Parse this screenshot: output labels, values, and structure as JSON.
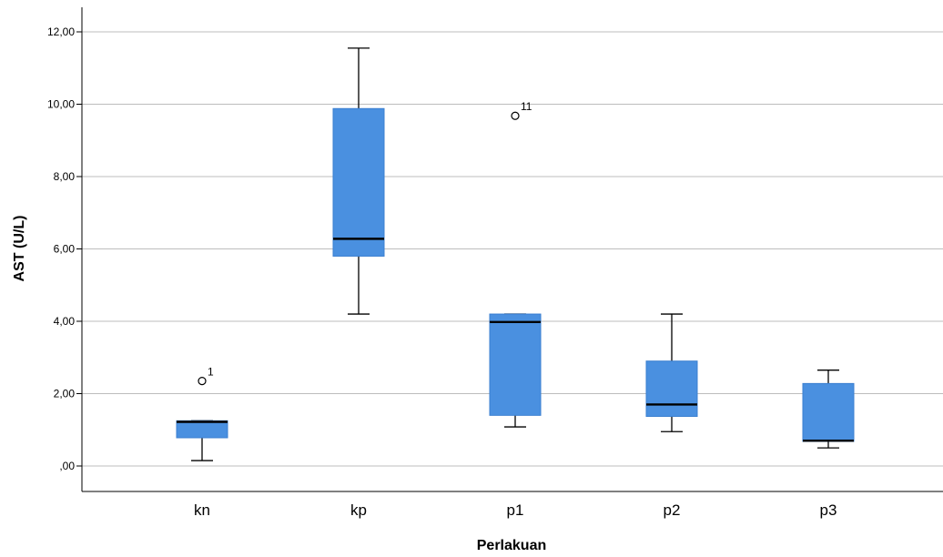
{
  "chart_data": {
    "type": "boxplot",
    "xlabel": "Perlakuan",
    "ylabel": "AST (U/L)",
    "ylim": [
      -0.6,
      12.7
    ],
    "yticks": [
      0,
      2,
      4,
      6,
      8,
      10,
      12
    ],
    "ytick_labels": [
      ",00",
      "2,00",
      "4,00",
      "6,00",
      "8,00",
      "10,00",
      "12,00"
    ],
    "grid": true,
    "box_color": "#4a90e0",
    "box_edge_color": "#3b7fd0",
    "median_color": "#000000",
    "categories": [
      "kn",
      "kp",
      "p1",
      "p2",
      "p3"
    ],
    "boxes": [
      {
        "category": "kn",
        "whisker_low": 0.15,
        "q1": 0.78,
        "median": 1.22,
        "q3": 1.25,
        "whisker_high": 1.25,
        "outliers": [
          {
            "value": 2.35,
            "label": "1"
          }
        ]
      },
      {
        "category": "kp",
        "whisker_low": 4.2,
        "q1": 5.8,
        "median": 6.28,
        "q3": 9.88,
        "whisker_high": 11.55,
        "outliers": []
      },
      {
        "category": "p1",
        "whisker_low": 1.08,
        "q1": 1.4,
        "median": 3.98,
        "q3": 4.2,
        "whisker_high": 4.2,
        "outliers": [
          {
            "value": 9.68,
            "label": "11"
          }
        ]
      },
      {
        "category": "p2",
        "whisker_low": 0.95,
        "q1": 1.37,
        "median": 1.7,
        "q3": 2.9,
        "whisker_high": 4.2,
        "outliers": []
      },
      {
        "category": "p3",
        "whisker_low": 0.5,
        "q1": 0.68,
        "median": 0.7,
        "q3": 2.28,
        "whisker_high": 2.65,
        "outliers": []
      }
    ]
  }
}
